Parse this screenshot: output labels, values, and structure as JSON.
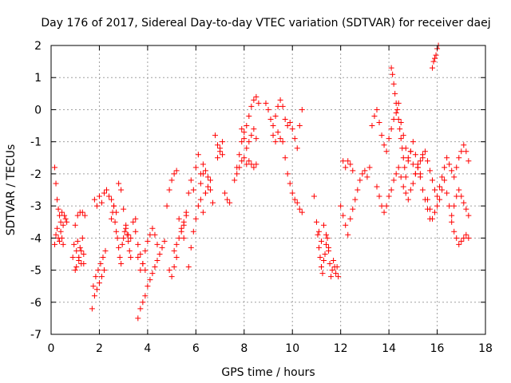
{
  "chart_data": {
    "type": "scatter",
    "title": "Day 176 of 2017, Sidereal Day-to-day VTEC variation (SDTVAR) for receiver daej",
    "xlabel": "GPS time / hours",
    "ylabel": "SDTVAR / TECUs",
    "xlim": [
      0,
      18
    ],
    "ylim": [
      -7,
      2
    ],
    "xticks": [
      "0",
      "2",
      "4",
      "6",
      "8",
      "10",
      "12",
      "14",
      "16",
      "18"
    ],
    "yticks": [
      "-7",
      "-6",
      "-5",
      "-4",
      "-3",
      "-2",
      "-1",
      "0",
      "1",
      "2"
    ],
    "grid": true,
    "marker": "+",
    "color": "#ff0000",
    "series": [
      {
        "name": "SDTVAR",
        "x": [
          0.15,
          0.2,
          0.25,
          0.3,
          0.35,
          0.4,
          0.45,
          0.5,
          0.55,
          0.6,
          0.65,
          0.15,
          0.2,
          0.25,
          0.3,
          0.35,
          0.4,
          0.45,
          0.5,
          0.9,
          0.95,
          1.0,
          1.05,
          1.1,
          1.15,
          1.2,
          1.25,
          1.3,
          1.35,
          1.4,
          1.0,
          1.05,
          1.1,
          1.15,
          1.2,
          1.25,
          1.3,
          1.35,
          1.7,
          1.75,
          1.8,
          1.85,
          1.9,
          1.95,
          2.0,
          2.05,
          2.1,
          2.15,
          2.2,
          2.25,
          1.8,
          1.9,
          2.0,
          2.1,
          2.2,
          2.3,
          2.4,
          2.5,
          2.6,
          2.7,
          2.5,
          2.55,
          2.6,
          2.65,
          2.7,
          2.75,
          2.8,
          2.85,
          2.9,
          2.95,
          3.0,
          3.05,
          3.1,
          3.15,
          3.2,
          3.25,
          3.3,
          2.8,
          2.9,
          3.0,
          3.1,
          3.2,
          3.3,
          3.4,
          3.5,
          3.6,
          3.7,
          3.8,
          3.9,
          3.6,
          3.7,
          3.8,
          3.9,
          4.0,
          4.1,
          4.2,
          4.3,
          4.4,
          4.5,
          4.6,
          4.7,
          3.5,
          3.6,
          3.7,
          3.8,
          3.9,
          4.0,
          4.1,
          4.2,
          4.3,
          4.4,
          4.8,
          4.9,
          5.0,
          5.1,
          5.2,
          5.3,
          5.4,
          5.5,
          5.1,
          5.2,
          5.3,
          5.4,
          5.5,
          5.6,
          4.9,
          5.0,
          5.1,
          5.2,
          5.5,
          5.6,
          5.7,
          5.8,
          5.9,
          6.0,
          6.1,
          6.2,
          6.3,
          6.4,
          5.7,
          5.8,
          5.9,
          6.0,
          6.1,
          6.2,
          6.3,
          6.4,
          6.5,
          6.6,
          6.2,
          6.3,
          6.4,
          6.5,
          6.6,
          6.7,
          6.8,
          6.9,
          7.0,
          7.1,
          7.2,
          7.3,
          7.4,
          6.9,
          7.0,
          7.1,
          7.6,
          7.7,
          7.8,
          7.9,
          8.0,
          8.1,
          8.2,
          8.3,
          8.4,
          8.5,
          8.6,
          7.7,
          7.8,
          7.9,
          8.0,
          8.1,
          8.2,
          8.3,
          8.4,
          8.5,
          7.9,
          8.0,
          8.1,
          8.2,
          8.3,
          8.4,
          8.5,
          8.9,
          9.0,
          9.1,
          9.2,
          9.3,
          9.4,
          9.5,
          9.6,
          9.7,
          9.8,
          9.9,
          10.0,
          10.1,
          10.2,
          10.3,
          10.4,
          9.6,
          9.7,
          9.8,
          9.9,
          10.0,
          10.1,
          10.2,
          10.3,
          10.4,
          9.2,
          9.3,
          9.4,
          9.5,
          10.9,
          11.0,
          11.05,
          11.1,
          11.15,
          11.2,
          11.25,
          11.3,
          11.35,
          11.4,
          11.45,
          11.5,
          11.55,
          11.6,
          11.65,
          11.7,
          11.75,
          11.8,
          11.85,
          11.9,
          11.1,
          11.2,
          11.3,
          11.4,
          11.5,
          12.0,
          12.1,
          12.2,
          12.3,
          12.4,
          12.5,
          12.6,
          12.7,
          12.8,
          12.9,
          13.0,
          13.1,
          13.2,
          12.1,
          12.2,
          12.3,
          12.4,
          12.5,
          13.3,
          13.4,
          13.5,
          13.6,
          13.7,
          13.8,
          13.9,
          14.0,
          14.1,
          14.2,
          14.3,
          14.4,
          14.5,
          14.6,
          14.7,
          14.8,
          14.9,
          15.0,
          15.1,
          15.2,
          15.3,
          15.4,
          13.5,
          13.6,
          13.7,
          13.8,
          13.9,
          14.0,
          14.1,
          14.2,
          14.3,
          14.4,
          14.5,
          14.6,
          14.7,
          14.8,
          14.9,
          15.0,
          15.1,
          15.2,
          15.3,
          15.4,
          15.5,
          15.6,
          15.7,
          14.1,
          14.15,
          14.2,
          14.25,
          14.3,
          14.35,
          14.4,
          14.45,
          14.5,
          14.55,
          14.6,
          14.65,
          14.7,
          14.8,
          14.9,
          15.0,
          15.1,
          15.2,
          15.3,
          15.4,
          15.5,
          15.6,
          15.7,
          15.8,
          15.9,
          16.0,
          16.1,
          16.2,
          16.3,
          16.4,
          16.5,
          16.6,
          16.7,
          16.8,
          16.9,
          17.0,
          17.1,
          17.2,
          17.3,
          15.6,
          15.7,
          15.8,
          15.9,
          16.0,
          16.1,
          16.2,
          16.3,
          16.4,
          16.5,
          16.6,
          16.7,
          16.8,
          16.9,
          17.0,
          17.1,
          17.2,
          17.3,
          15.8,
          15.85,
          15.9,
          15.95,
          16.0,
          16.05,
          16.6,
          16.7,
          16.8,
          16.9,
          17.0,
          17.1,
          17.2,
          17.3
        ],
        "y": [
          -1.8,
          -2.3,
          -2.8,
          -3.1,
          -3.3,
          -3.5,
          -3.2,
          -3.6,
          -3.3,
          -3.4,
          -3.5,
          -4.2,
          -3.9,
          -3.7,
          -4.0,
          -4.1,
          -3.8,
          -4.0,
          -4.2,
          -4.6,
          -4.2,
          -3.6,
          -4.9,
          -3.3,
          -4.7,
          -3.2,
          -4.4,
          -3.2,
          -4.8,
          -3.3,
          -5.0,
          -4.4,
          -4.1,
          -4.6,
          -4.3,
          -4.8,
          -4.0,
          -4.5,
          -6.2,
          -5.5,
          -5.8,
          -5.2,
          -5.6,
          -5.0,
          -5.4,
          -4.8,
          -5.2,
          -4.6,
          -5.0,
          -4.4,
          -2.8,
          -3.0,
          -2.7,
          -2.9,
          -2.6,
          -2.5,
          -2.7,
          -2.8,
          -3.0,
          -3.2,
          -3.4,
          -3.2,
          -3.0,
          -3.5,
          -3.8,
          -4.0,
          -4.3,
          -4.6,
          -4.8,
          -4.2,
          -4.0,
          -3.8,
          -3.6,
          -3.9,
          -4.1,
          -4.4,
          -4.6,
          -2.3,
          -2.5,
          -3.1,
          -3.7,
          -3.9,
          -4.0,
          -3.5,
          -3.8,
          -4.2,
          -4.5,
          -4.8,
          -5.0,
          -6.5,
          -6.2,
          -6.0,
          -5.8,
          -5.5,
          -5.3,
          -5.1,
          -4.9,
          -4.7,
          -4.5,
          -4.3,
          -4.1,
          -3.4,
          -4.6,
          -5.0,
          -4.8,
          -4.4,
          -4.1,
          -3.9,
          -3.7,
          -3.9,
          -4.2,
          -3.0,
          -2.5,
          -2.2,
          -2.0,
          -1.9,
          -3.4,
          -3.8,
          -3.6,
          -4.4,
          -4.2,
          -4.0,
          -3.7,
          -3.5,
          -3.3,
          -5.0,
          -5.2,
          -4.9,
          -4.6,
          -4.0,
          -3.2,
          -2.6,
          -2.2,
          -2.5,
          -1.8,
          -1.4,
          -2.3,
          -2.0,
          -2.6,
          -4.9,
          -4.3,
          -3.8,
          -3.4,
          -3.0,
          -2.8,
          -3.2,
          -2.6,
          -2.4,
          -2.2,
          -2.0,
          -1.7,
          -1.9,
          -2.1,
          -2.5,
          -2.9,
          -0.8,
          -1.1,
          -1.3,
          -1.0,
          -2.6,
          -2.8,
          -2.9,
          -1.5,
          -1.2,
          -1.4,
          -2.2,
          -1.8,
          -1.4,
          -1.0,
          -0.7,
          -0.5,
          -0.2,
          0.1,
          0.3,
          0.4,
          0.2,
          -2.0,
          -1.8,
          -1.6,
          -1.5,
          -1.7,
          -1.6,
          -1.7,
          -1.8,
          -1.7,
          -0.6,
          -0.9,
          -1.2,
          -1.0,
          -0.8,
          -0.6,
          -0.9,
          0.2,
          0.0,
          -0.3,
          -0.5,
          -0.2,
          0.1,
          0.3,
          0.1,
          -0.3,
          -0.5,
          -0.4,
          -0.6,
          -0.9,
          -1.2,
          -0.5,
          0.0,
          -1.0,
          -1.5,
          -2.0,
          -2.3,
          -2.6,
          -2.8,
          -2.9,
          -3.1,
          -3.2,
          -0.8,
          -1.0,
          -0.7,
          -0.9,
          -2.7,
          -3.5,
          -3.9,
          -4.3,
          -4.6,
          -4.9,
          -5.1,
          -4.7,
          -4.5,
          -4.2,
          -4.0,
          -4.4,
          -4.8,
          -5.2,
          -5.0,
          -4.7,
          -4.9,
          -5.1,
          -4.9,
          -5.2,
          -3.8,
          -4.1,
          -3.6,
          -3.9,
          -4.3,
          -3.0,
          -3.3,
          -3.6,
          -3.9,
          -3.4,
          -3.1,
          -2.8,
          -2.5,
          -2.2,
          -2.0,
          -1.9,
          -2.1,
          -1.8,
          -1.6,
          -1.8,
          -1.6,
          -1.7,
          -1.9,
          -0.5,
          -0.2,
          0.0,
          -0.4,
          -0.8,
          -1.1,
          -1.3,
          -0.9,
          -0.6,
          -0.3,
          -0.1,
          0.2,
          -0.4,
          -0.8,
          -1.2,
          -1.5,
          -1.3,
          -1.7,
          -2.0,
          -1.8,
          -1.6,
          -1.4,
          -2.4,
          -2.7,
          -3.0,
          -3.2,
          -3.0,
          -2.7,
          -2.5,
          -2.2,
          -2.0,
          -1.8,
          -2.1,
          -2.4,
          -2.6,
          -2.8,
          -2.5,
          -2.3,
          -2.0,
          -1.8,
          -2.1,
          -2.5,
          -2.8,
          -3.1,
          -3.4,
          1.3,
          1.1,
          0.8,
          0.5,
          0.2,
          0.0,
          -0.3,
          -0.6,
          -0.9,
          -1.2,
          -1.5,
          -1.8,
          -2.1,
          -1.6,
          -1.3,
          -1.0,
          -1.4,
          -1.7,
          -2.0,
          -1.5,
          -1.3,
          -1.6,
          -1.9,
          -2.2,
          -2.5,
          -2.7,
          -2.4,
          -2.1,
          -1.8,
          -1.5,
          -1.7,
          -1.9,
          -2.1,
          -1.8,
          -1.5,
          -1.3,
          -1.1,
          -1.3,
          -1.6,
          -2.8,
          -3.1,
          -3.4,
          -3.2,
          -3.0,
          -2.8,
          -2.5,
          -2.2,
          -2.6,
          -3.0,
          -3.3,
          -3.0,
          -2.7,
          -2.5,
          -2.7,
          -2.9,
          -3.1,
          -3.3,
          1.3,
          1.5,
          1.6,
          1.7,
          1.9,
          2.0,
          -3.5,
          -3.8,
          -4.0,
          -4.2,
          -4.1,
          -4.0,
          -3.9,
          -4.0
        ]
      }
    ]
  }
}
